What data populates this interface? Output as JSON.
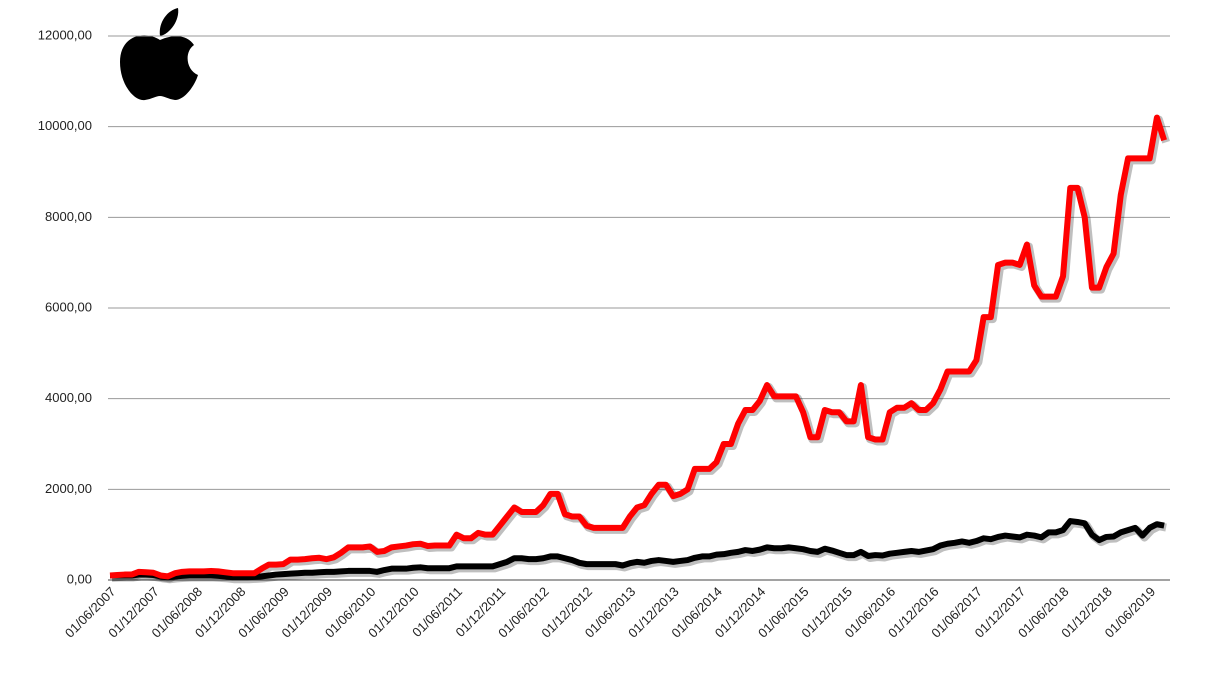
{
  "chart_data": {
    "type": "line",
    "categories": [
      "01/06/2007",
      null,
      null,
      null,
      null,
      null,
      "01/12/2007",
      null,
      null,
      null,
      null,
      null,
      "01/06/2008",
      null,
      null,
      null,
      null,
      null,
      "01/12/2008",
      null,
      null,
      null,
      null,
      null,
      "01/06/2009",
      null,
      null,
      null,
      null,
      null,
      "01/12/2009",
      null,
      null,
      null,
      null,
      null,
      "01/06/2010",
      null,
      null,
      null,
      null,
      null,
      "01/12/2010",
      null,
      null,
      null,
      null,
      null,
      "01/06/2011",
      null,
      null,
      null,
      null,
      null,
      "01/12/2011",
      null,
      null,
      null,
      null,
      null,
      "01/06/2012",
      null,
      null,
      null,
      null,
      null,
      "01/12/2012",
      null,
      null,
      null,
      null,
      null,
      "01/06/2013",
      null,
      null,
      null,
      null,
      null,
      "01/12/2013",
      null,
      null,
      null,
      null,
      null,
      "01/06/2014",
      null,
      null,
      null,
      null,
      null,
      "01/12/2014",
      null,
      null,
      null,
      null,
      null,
      "01/06/2015",
      null,
      null,
      null,
      null,
      null,
      "01/12/2015",
      null,
      null,
      null,
      null,
      null,
      "01/06/2016",
      null,
      null,
      null,
      null,
      null,
      "01/12/2016",
      null,
      null,
      null,
      null,
      null,
      "01/06/2017",
      null,
      null,
      null,
      null,
      null,
      "01/12/2017",
      null,
      null,
      null,
      null,
      null,
      "01/06/2018",
      null,
      null,
      null,
      null,
      null,
      "01/12/2018",
      null,
      null,
      null,
      null,
      null,
      "01/06/2019",
      null,
      null
    ],
    "series": [
      {
        "color": "#ff0000",
        "values": [
          100,
          110,
          120,
          120,
          180,
          170,
          160,
          100,
          80,
          150,
          180,
          190,
          190,
          190,
          200,
          190,
          170,
          150,
          150,
          150,
          150,
          250,
          340,
          340,
          350,
          450,
          450,
          460,
          480,
          490,
          460,
          500,
          600,
          720,
          720,
          720,
          740,
          620,
          640,
          720,
          740,
          760,
          790,
          800,
          750,
          760,
          760,
          760,
          1000,
          920,
          920,
          1040,
          1000,
          1000,
          1200,
          1400,
          1600,
          1500,
          1500,
          1500,
          1650,
          1900,
          1900,
          1450,
          1400,
          1400,
          1200,
          1150,
          1150,
          1150,
          1150,
          1150,
          1400,
          1600,
          1650,
          1900,
          2100,
          2100,
          1850,
          1900,
          2000,
          2450,
          2450,
          2450,
          2600,
          3000,
          3000,
          3450,
          3750,
          3750,
          3950,
          4300,
          4050,
          4050,
          4050,
          4050,
          3700,
          3150,
          3150,
          3750,
          3700,
          3700,
          3500,
          3500,
          4300,
          3150,
          3100,
          3100,
          3700,
          3800,
          3800,
          3900,
          3750,
          3750,
          3900,
          4200,
          4600,
          4600,
          4600,
          4600,
          4850,
          5800,
          5800,
          6950,
          7000,
          7000,
          6950,
          7400,
          6500,
          6250,
          6250,
          6250,
          6700,
          8650,
          8650,
          8000,
          6450,
          6450,
          6900,
          7200,
          8500,
          9300,
          9300,
          9300,
          9300,
          10200,
          9700
        ]
      },
      {
        "color": "#000000",
        "values": [
          100,
          100,
          100,
          100,
          120,
          120,
          110,
          80,
          60,
          80,
          90,
          100,
          100,
          100,
          100,
          90,
          80,
          60,
          60,
          60,
          70,
          80,
          100,
          120,
          130,
          140,
          150,
          160,
          160,
          170,
          180,
          180,
          190,
          200,
          200,
          200,
          200,
          180,
          220,
          250,
          250,
          250,
          270,
          280,
          260,
          260,
          260,
          260,
          300,
          300,
          300,
          300,
          300,
          300,
          350,
          400,
          480,
          480,
          460,
          460,
          480,
          520,
          520,
          480,
          440,
          380,
          350,
          350,
          350,
          350,
          350,
          320,
          370,
          400,
          380,
          420,
          440,
          420,
          400,
          420,
          440,
          490,
          520,
          520,
          560,
          570,
          600,
          620,
          660,
          640,
          670,
          720,
          700,
          700,
          720,
          700,
          680,
          640,
          620,
          690,
          650,
          600,
          550,
          550,
          620,
          530,
          550,
          540,
          580,
          600,
          620,
          640,
          620,
          650,
          680,
          760,
          800,
          820,
          850,
          820,
          860,
          920,
          900,
          950,
          980,
          960,
          940,
          1000,
          980,
          940,
          1050,
          1050,
          1100,
          1300,
          1280,
          1250,
          1000,
          880,
          950,
          960,
          1050,
          1100,
          1150,
          980,
          1150,
          1230,
          1200
        ]
      }
    ],
    "ylim": [
      0,
      12000
    ],
    "yticks": [
      {
        "value": 0,
        "label": "0,00"
      },
      {
        "value": 2000,
        "label": "2000,00"
      },
      {
        "value": 4000,
        "label": "4000,00"
      },
      {
        "value": 6000,
        "label": "6000,00"
      },
      {
        "value": 8000,
        "label": "8000,00"
      },
      {
        "value": 10000,
        "label": "10000,00"
      },
      {
        "value": 12000,
        "label": "12000,00"
      }
    ],
    "grid": true
  }
}
